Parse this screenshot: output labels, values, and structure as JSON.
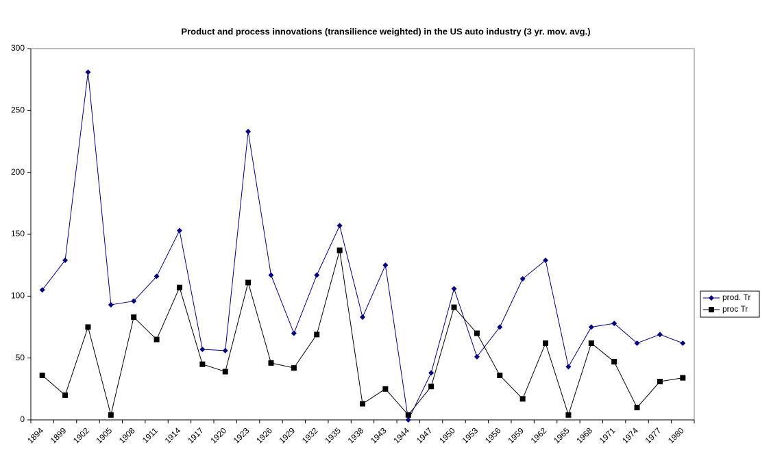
{
  "chart_data": {
    "type": "line",
    "title": "Product and process innovations (transilience weighted) in the US auto industry (3 yr. mov. avg.)",
    "categories": [
      "1894",
      "1899",
      "1902",
      "1905",
      "1908",
      "1911",
      "1914",
      "1917",
      "1920",
      "1923",
      "1926",
      "1929",
      "1932",
      "1935",
      "1938",
      "1943",
      "1944",
      "1947",
      "1950",
      "1953",
      "1956",
      "1959",
      "1962",
      "1965",
      "1968",
      "1971",
      "1974",
      "1977",
      "1980"
    ],
    "series": [
      {
        "name": "prod. Tr",
        "color": "#000080",
        "marker": "diamond",
        "values": [
          105,
          129,
          281,
          93,
          96,
          116,
          153,
          57,
          56,
          233,
          117,
          70,
          117,
          157,
          83,
          125,
          0,
          38,
          106,
          51,
          75,
          114,
          129,
          43,
          75,
          78,
          62,
          69,
          62
        ]
      },
      {
        "name": "proc Tr",
        "color": "#000000",
        "marker": "square",
        "values": [
          36,
          20,
          75,
          4,
          83,
          65,
          107,
          45,
          39,
          111,
          46,
          42,
          69,
          137,
          13,
          25,
          4,
          27,
          91,
          70,
          36,
          17,
          62,
          4,
          62,
          47,
          10,
          31,
          34
        ]
      }
    ],
    "ylim": [
      0,
      300
    ],
    "yticks": [
      0,
      50,
      100,
      150,
      200,
      250,
      300
    ],
    "grid": false,
    "legend": "right"
  }
}
